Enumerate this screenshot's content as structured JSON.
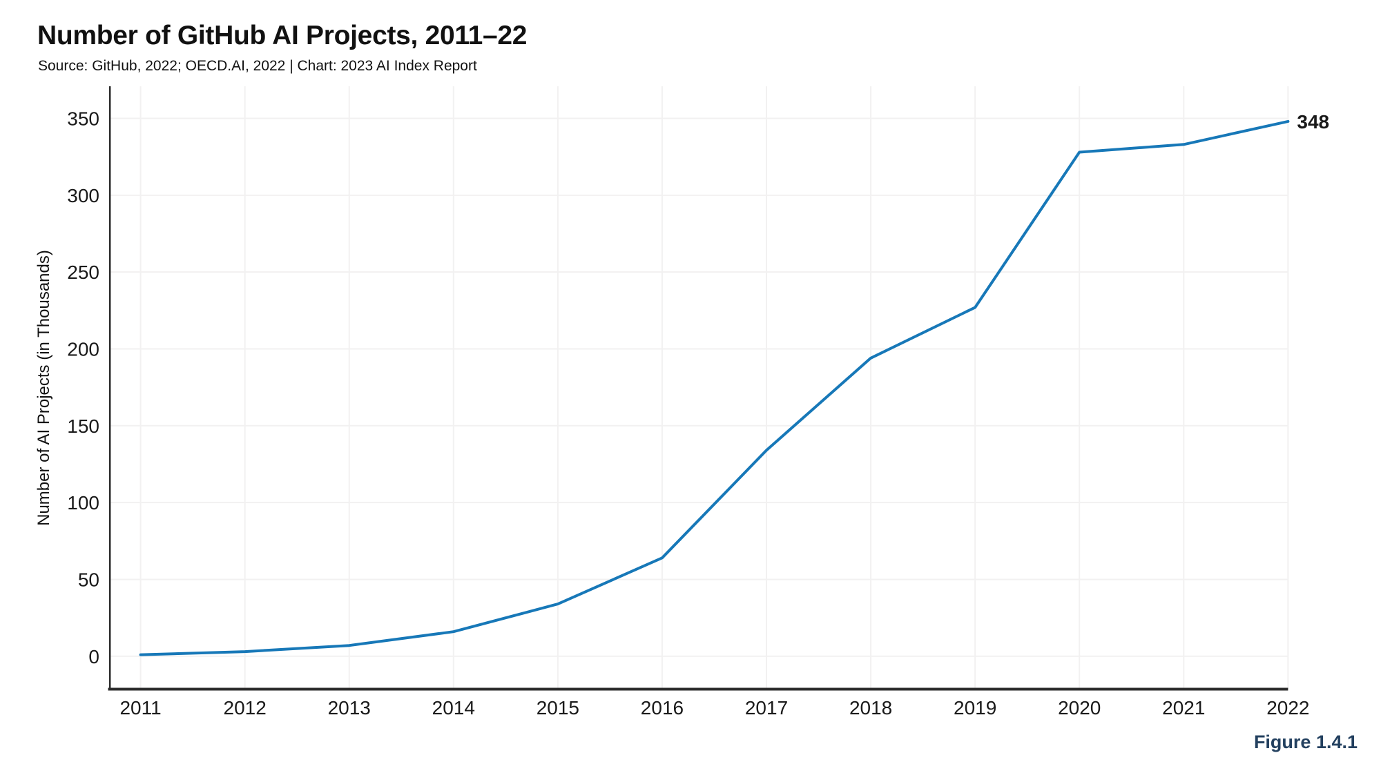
{
  "header": {
    "title": "Number of GitHub AI Projects, 2011–22",
    "subtitle": "Source: GitHub, 2022; OECD.AI, 2022 | Chart: 2023 AI Index Report"
  },
  "figure_label": "Figure 1.4.1",
  "colors": {
    "line": "#1778b8",
    "end_label": "#1778b8",
    "grid": "#f2f1f1",
    "axis_spine": "#2b2b2b",
    "text": "#1a1a1a",
    "figure_label": "#23405f"
  },
  "chart_data": {
    "type": "line",
    "title": "Number of GitHub AI Projects, 2011–22",
    "x": [
      "2011",
      "2012",
      "2013",
      "2014",
      "2015",
      "2016",
      "2017",
      "2018",
      "2019",
      "2020",
      "2021",
      "2022"
    ],
    "series": [
      {
        "name": "Number of AI Projects (in Thousands)",
        "values": [
          1,
          3,
          7,
          16,
          34,
          64,
          134,
          194,
          227,
          328,
          333,
          348
        ]
      }
    ],
    "end_label": "348",
    "xlabel": "",
    "ylabel": "Number of AI Projects (in Thousands)",
    "ylim": [
      0,
      350
    ],
    "yticks": [
      0,
      50,
      100,
      150,
      200,
      250,
      300,
      350
    ],
    "grid": true,
    "legend_position": "none"
  }
}
